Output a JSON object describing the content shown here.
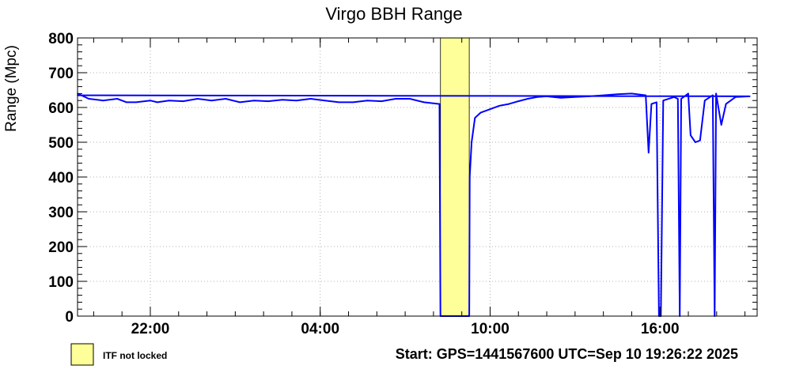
{
  "chart_data": {
    "type": "line",
    "title": "Virgo BBH Range",
    "ylabel": "Range (Mpc)",
    "xlabel": "",
    "ylim": [
      0,
      800
    ],
    "xlim": [
      "19:26",
      "19:26"
    ],
    "yticks": [
      0,
      100,
      200,
      300,
      400,
      500,
      600,
      700,
      800
    ],
    "xticks": [
      {
        "label": "22:00",
        "hours_since_start": 2.57
      },
      {
        "label": "04:00",
        "hours_since_start": 8.57
      },
      {
        "label": "10:00",
        "hours_since_start": 14.57
      },
      {
        "label": "16:00",
        "hours_since_start": 20.57
      }
    ],
    "grid": true,
    "series_color": "#0000ff",
    "shaded_color": "#ffff99",
    "shaded_regions": [
      {
        "label": "ITF not locked",
        "start": "08:15",
        "end": "09:16"
      }
    ],
    "series": [
      {
        "points": [
          [
            "19:26",
            640
          ],
          [
            "19:50",
            625
          ],
          [
            "20:20",
            620
          ],
          [
            "20:50",
            625
          ],
          [
            "21:10",
            615
          ],
          [
            "21:30",
            615
          ],
          [
            "22:00",
            620
          ],
          [
            "22:15",
            615
          ],
          [
            "22:40",
            620
          ],
          [
            "23:10",
            618
          ],
          [
            "23:40",
            625
          ],
          [
            "00:10",
            620
          ],
          [
            "00:40",
            625
          ],
          [
            "01:10",
            615
          ],
          [
            "01:40",
            620
          ],
          [
            "02:10",
            618
          ],
          [
            "02:40",
            622
          ],
          [
            "03:10",
            620
          ],
          [
            "03:40",
            625
          ],
          [
            "04:10",
            620
          ],
          [
            "04:40",
            615
          ],
          [
            "05:10",
            615
          ],
          [
            "05:40",
            620
          ],
          [
            "06:10",
            618
          ],
          [
            "06:40",
            625
          ],
          [
            "07:10",
            625
          ],
          [
            "07:40",
            615
          ],
          [
            "08:13",
            610
          ],
          [
            "08:15",
            0
          ],
          [
            "09:16",
            0
          ],
          [
            "09:17",
            400
          ],
          [
            "09:21",
            500
          ],
          [
            "09:28",
            570
          ],
          [
            "09:40",
            585
          ],
          [
            "10:00",
            595
          ],
          [
            "10:20",
            605
          ],
          [
            "10:40",
            610
          ],
          [
            "11:00",
            618
          ],
          [
            "11:20",
            625
          ],
          [
            "11:40",
            630
          ],
          [
            "12:00",
            632
          ],
          [
            "12:30",
            628
          ],
          [
            "13:00",
            630
          ],
          [
            "13:30",
            632
          ],
          [
            "14:00",
            635
          ],
          [
            "14:30",
            638
          ],
          [
            "15:00",
            640
          ],
          [
            "15:30",
            635
          ],
          [
            "15:36",
            470
          ],
          [
            "15:42",
            610
          ],
          [
            "15:53",
            615
          ],
          [
            "15:58",
            0
          ],
          [
            "16:02",
            0
          ],
          [
            "16:07",
            620
          ],
          [
            "16:30",
            630
          ],
          [
            "16:38",
            625
          ],
          [
            "16:42",
            0
          ],
          [
            "16:45",
            625
          ],
          [
            "17:00",
            640
          ],
          [
            "17:05",
            520
          ],
          [
            "17:15",
            500
          ],
          [
            "17:25",
            505
          ],
          [
            "17:35",
            620
          ],
          [
            "17:52",
            635
          ],
          [
            "17:56",
            0
          ],
          [
            "17:59",
            640
          ],
          [
            "18:10",
            550
          ],
          [
            "18:20",
            610
          ],
          [
            "18:40",
            630
          ],
          [
            "19:10",
            632
          ],
          [
            "19:26",
            635
          ]
        ]
      }
    ],
    "legend": {
      "entries": [
        "ITF not locked"
      ],
      "position": "bottom-left"
    },
    "footer": "Start: GPS=1441567600 UTC=Sep 10 19:26:22 2025"
  }
}
